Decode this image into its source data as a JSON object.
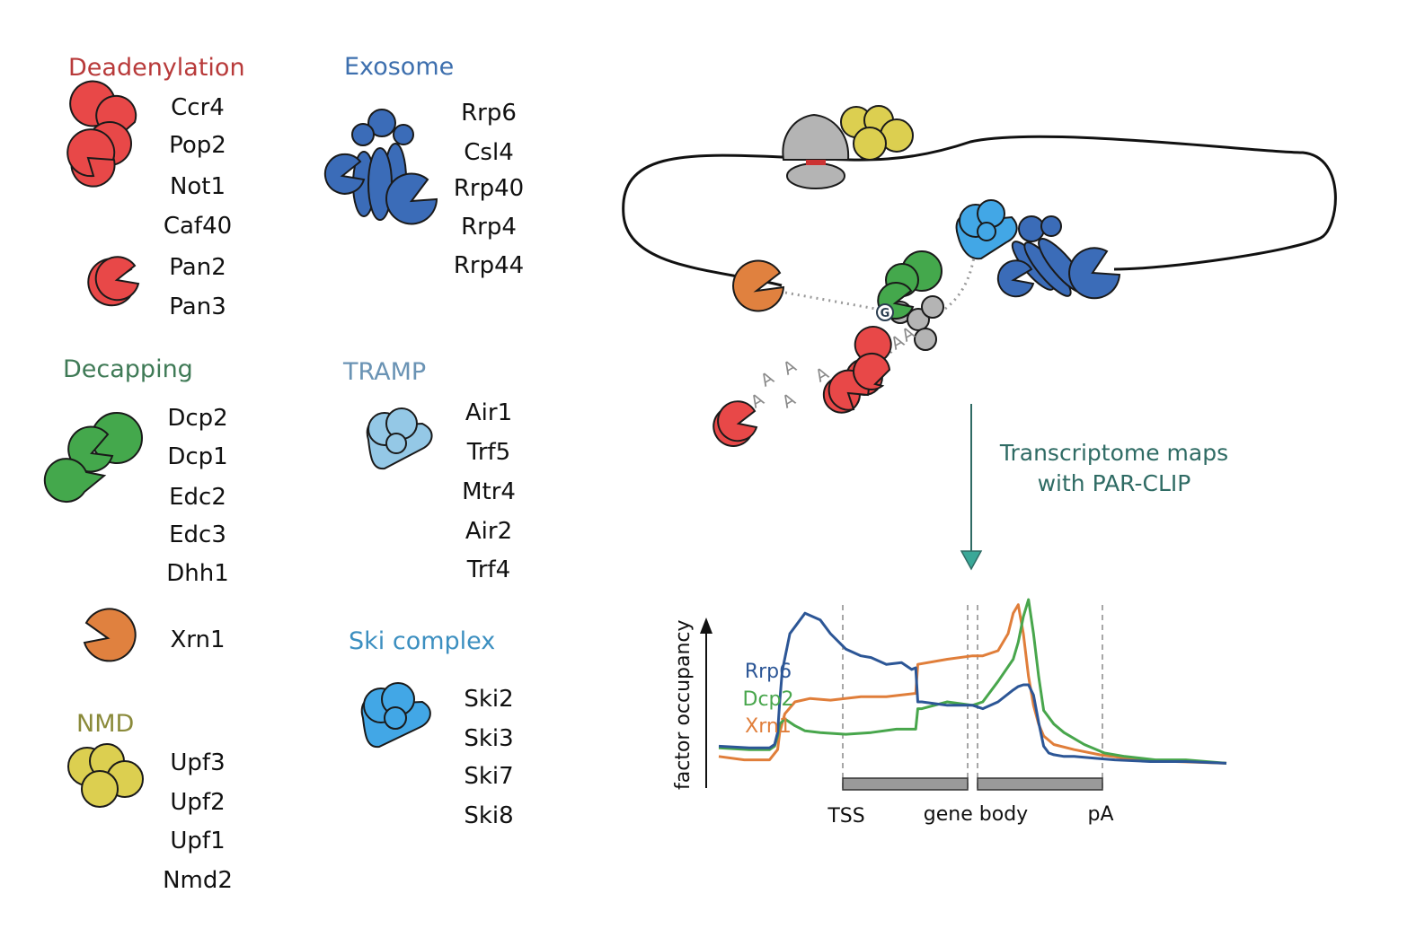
{
  "colors": {
    "deadenylation": "#b83a3a",
    "exosome": "#3d6fae",
    "decapping": "#3f7a56",
    "tramp": "#6a93b4",
    "ski": "#3c8fc0",
    "nmd": "#8a8a3a",
    "red_protein": "#e84848",
    "blue_protein": "#3b6cb8",
    "green_protein": "#44a84c",
    "orange_protein": "#e0813f",
    "yellow_protein": "#dccf50",
    "light_blue_protein": "#94c8e6",
    "sky_blue_protein": "#42a7e6",
    "gray_protein": "#b4b4b4",
    "arrow": "#2f6b64",
    "rrp6_line": "#2c5696",
    "dcp2_line": "#48a64c",
    "xrn1_line": "#e07e3a"
  },
  "groups": {
    "deadenylation": {
      "title": "Deadenylation",
      "proteins": [
        "Ccr4",
        "Pop2",
        "Not1",
        "Caf40",
        "Pan2",
        "Pan3"
      ]
    },
    "exosome": {
      "title": "Exosome",
      "proteins": [
        "Rrp6",
        "Csl4",
        "Rrp40",
        "Rrp4",
        "Rrp44"
      ]
    },
    "decapping": {
      "title": "Decapping",
      "proteins": [
        "Dcp2",
        "Dcp1",
        "Edc2",
        "Edc3",
        "Dhh1",
        "Xrn1"
      ]
    },
    "tramp": {
      "title": "TRAMP",
      "proteins": [
        "Air1",
        "Trf5",
        "Mtr4",
        "Air2",
        "Trf4"
      ]
    },
    "ski": {
      "title": "Ski complex",
      "proteins": [
        "Ski2",
        "Ski3",
        "Ski7",
        "Ski8"
      ]
    },
    "nmd": {
      "title": "NMD",
      "proteins": [
        "Upf3",
        "Upf2",
        "Upf1",
        "Nmd2"
      ]
    }
  },
  "mrna": {
    "cap_letter": "G",
    "polya_letters": [
      "A",
      "A",
      "A",
      "A",
      "A",
      "A",
      "A",
      "A",
      "A"
    ]
  },
  "arrow_label": {
    "line1": "Transcriptome maps",
    "line2": "with PAR-CLIP"
  },
  "chart_data": {
    "type": "line",
    "ylabel": "factor occupancy",
    "xlabels": {
      "tss": "TSS",
      "body": "gene body",
      "pa": "pA"
    },
    "legend_placement": "left",
    "series": [
      {
        "name": "Rrp6",
        "color": "#2c5696",
        "x": [
          0,
          6,
          10,
          11,
          11.6,
          12,
          12.5,
          14,
          17,
          20,
          22,
          25,
          28,
          30,
          33,
          36,
          38,
          38.8,
          39.2,
          40,
          45,
          50,
          52,
          55,
          58,
          59,
          60,
          61,
          62,
          63,
          64,
          65,
          66,
          68,
          70,
          74,
          78,
          85,
          92,
          100
        ],
        "y": [
          0.14,
          0.13,
          0.13,
          0.15,
          0.22,
          0.4,
          0.58,
          0.8,
          0.92,
          0.88,
          0.8,
          0.71,
          0.67,
          0.66,
          0.62,
          0.63,
          0.59,
          0.6,
          0.4,
          0.4,
          0.38,
          0.38,
          0.36,
          0.4,
          0.47,
          0.49,
          0.5,
          0.5,
          0.44,
          0.28,
          0.14,
          0.1,
          0.09,
          0.08,
          0.08,
          0.07,
          0.06,
          0.05,
          0.05,
          0.04
        ]
      },
      {
        "name": "Dcp2",
        "color": "#48a64c",
        "x": [
          0,
          6,
          10,
          11,
          11.6,
          12,
          13,
          15,
          17,
          20,
          25,
          30,
          35,
          38.8,
          39.2,
          40,
          45,
          50,
          52,
          55,
          58,
          59,
          60,
          61,
          62,
          63,
          64,
          66,
          68,
          72,
          76,
          80,
          86,
          92,
          100
        ],
        "y": [
          0.13,
          0.12,
          0.12,
          0.14,
          0.2,
          0.27,
          0.3,
          0.26,
          0.23,
          0.22,
          0.21,
          0.22,
          0.24,
          0.24,
          0.36,
          0.36,
          0.4,
          0.38,
          0.4,
          0.52,
          0.65,
          0.75,
          0.9,
          1.0,
          0.8,
          0.55,
          0.35,
          0.27,
          0.22,
          0.15,
          0.1,
          0.08,
          0.06,
          0.06,
          0.04
        ]
      },
      {
        "name": "Xrn1",
        "color": "#e07e3a",
        "x": [
          0,
          5,
          10,
          11.6,
          12,
          13,
          15,
          18,
          22,
          28,
          33,
          38.8,
          39.2,
          45,
          50,
          52,
          55,
          57,
          58,
          59,
          60,
          61,
          62,
          63,
          64,
          66,
          70,
          75,
          80,
          90,
          100
        ],
        "y": [
          0.08,
          0.06,
          0.06,
          0.12,
          0.22,
          0.33,
          0.4,
          0.42,
          0.41,
          0.43,
          0.43,
          0.45,
          0.62,
          0.65,
          0.67,
          0.67,
          0.7,
          0.8,
          0.92,
          0.97,
          0.8,
          0.55,
          0.38,
          0.27,
          0.2,
          0.15,
          0.12,
          0.09,
          0.07,
          0.05,
          0.04
        ]
      }
    ],
    "xlim": [
      0,
      100
    ],
    "ylim": [
      0,
      1
    ],
    "grid": false
  }
}
